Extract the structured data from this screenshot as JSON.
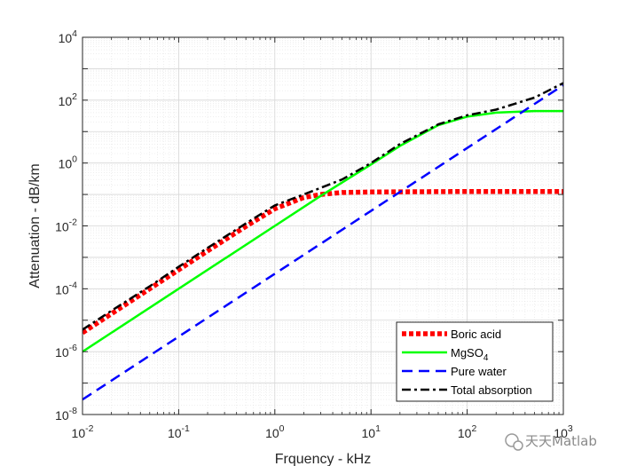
{
  "chart_data": {
    "type": "line",
    "scale": {
      "x": "log",
      "y": "log"
    },
    "xlabel": "Frquency - kHz",
    "ylabel": "Attenuation - dB/km",
    "xlim": [
      0.01,
      1000
    ],
    "ylim": [
      1e-08,
      10000
    ],
    "grid": true,
    "legend_position": "bottom-right",
    "x_ticks": [
      {
        "value": 0.01,
        "base": "10",
        "exp": "-2"
      },
      {
        "value": 0.1,
        "base": "10",
        "exp": "-1"
      },
      {
        "value": 1,
        "base": "10",
        "exp": "0"
      },
      {
        "value": 10,
        "base": "10",
        "exp": "1"
      },
      {
        "value": 100,
        "base": "10",
        "exp": "2"
      },
      {
        "value": 1000,
        "base": "10",
        "exp": "3"
      }
    ],
    "y_ticks": [
      {
        "value": 1e-08,
        "base": "10",
        "exp": "-8"
      },
      {
        "value": 1e-06,
        "base": "10",
        "exp": "-6"
      },
      {
        "value": 0.0001,
        "base": "10",
        "exp": "-4"
      },
      {
        "value": 0.01,
        "base": "10",
        "exp": "-2"
      },
      {
        "value": 1,
        "base": "10",
        "exp": "0"
      },
      {
        "value": 100,
        "base": "10",
        "exp": "2"
      },
      {
        "value": 10000,
        "base": "10",
        "exp": "4"
      }
    ],
    "series": [
      {
        "name": "Boric acid",
        "label_main": "Boric acid",
        "label_sub": "",
        "color": "#ff0000",
        "style": "dotted",
        "x": [
          0.01,
          0.02,
          0.05,
          0.1,
          0.2,
          0.5,
          1,
          2,
          3,
          5,
          10,
          100,
          1000
        ],
        "y": [
          4e-06,
          1.6e-05,
          0.0001,
          0.0004,
          0.0016,
          0.0097,
          0.035,
          0.08,
          0.1,
          0.115,
          0.12,
          0.125,
          0.125
        ]
      },
      {
        "name": "MgSO4",
        "label_main": "MgSO",
        "label_sub": "4",
        "color": "#00ff00",
        "style": "solid",
        "x": [
          0.01,
          0.1,
          1,
          3,
          10,
          20,
          50,
          100,
          200,
          500,
          1000
        ],
        "y": [
          1e-06,
          0.0001,
          0.01,
          0.09,
          0.9,
          3.5,
          16,
          30,
          40,
          45,
          45
        ]
      },
      {
        "name": "Pure water",
        "label_main": "Pure water",
        "label_sub": "",
        "color": "#0000ff",
        "style": "dashed",
        "x": [
          0.01,
          1000
        ],
        "y": [
          3e-08,
          300
        ]
      },
      {
        "name": "Total absorption",
        "label_main": "Total absorption",
        "label_sub": "",
        "color": "#000000",
        "style": "dashdot",
        "x": [
          0.01,
          0.02,
          0.05,
          0.1,
          0.2,
          0.5,
          1,
          2,
          5,
          10,
          20,
          50,
          100,
          200,
          500,
          1000
        ],
        "y": [
          5e-06,
          2e-05,
          0.00012,
          0.0005,
          0.002,
          0.012,
          0.045,
          0.1,
          0.3,
          1,
          4,
          17,
          33,
          50,
          120,
          350
        ]
      }
    ]
  },
  "watermark": {
    "text": "天天Matlab"
  }
}
